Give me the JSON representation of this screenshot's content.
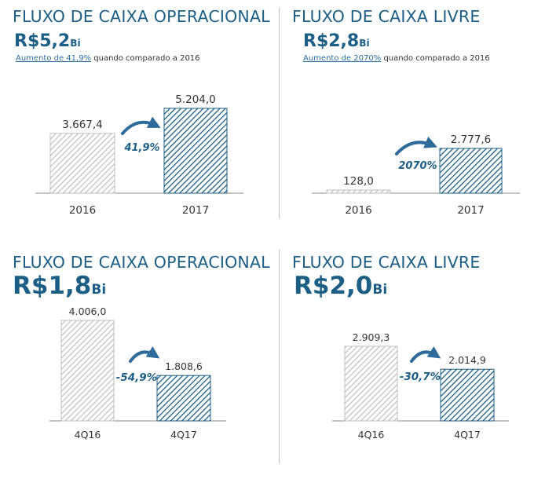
{
  "colors": {
    "title": "#1d5e86",
    "bar_prev": "#bfbfbf",
    "bar_curr": "#1d5e86",
    "axis": "#8c8c8c",
    "arrow": "#2e6b9a"
  },
  "panels": [
    {
      "title": "FLUXO DE CAIXA OPERACIONAL",
      "big_value": "R$5,2",
      "big_unit": "Bi",
      "sub_link": "Aumento de 41,9%",
      "sub_rest": " quando comparado a 2016"
    },
    {
      "title": "FLUXO DE CAIXA LIVRE",
      "big_value": "R$2,8",
      "big_unit": "Bi",
      "sub_link": "Aumento de 2070%",
      "sub_rest": " quando comparado a 2016"
    },
    {
      "title": "FLUXO DE CAIXA OPERACIONAL",
      "big_value": "R$1,8",
      "big_unit": "Bi"
    },
    {
      "title": "FLUXO DE CAIXA LIVRE",
      "big_value": "R$2,0",
      "big_unit": "Bi"
    }
  ],
  "chart_data": [
    {
      "type": "bar",
      "categories": [
        "2016",
        "2017"
      ],
      "values": [
        3667.4,
        5204.0
      ],
      "value_labels": [
        "3.667,4",
        "5.204,0"
      ],
      "change_label": "41,9%"
    },
    {
      "type": "bar",
      "categories": [
        "2016",
        "2017"
      ],
      "values": [
        128.0,
        2777.6
      ],
      "value_labels": [
        "128,0",
        "2.777,6"
      ],
      "change_label": "2070%"
    },
    {
      "type": "bar",
      "categories": [
        "4Q16",
        "4Q17"
      ],
      "values": [
        4006.0,
        1808.6
      ],
      "value_labels": [
        "4.006,0",
        "1.808,6"
      ],
      "change_label": "-54,9%"
    },
    {
      "type": "bar",
      "categories": [
        "4Q16",
        "4Q17"
      ],
      "values": [
        2909.3,
        2014.9
      ],
      "value_labels": [
        "2.909,3",
        "2.014,9"
      ],
      "change_label": "-30,7%"
    }
  ]
}
